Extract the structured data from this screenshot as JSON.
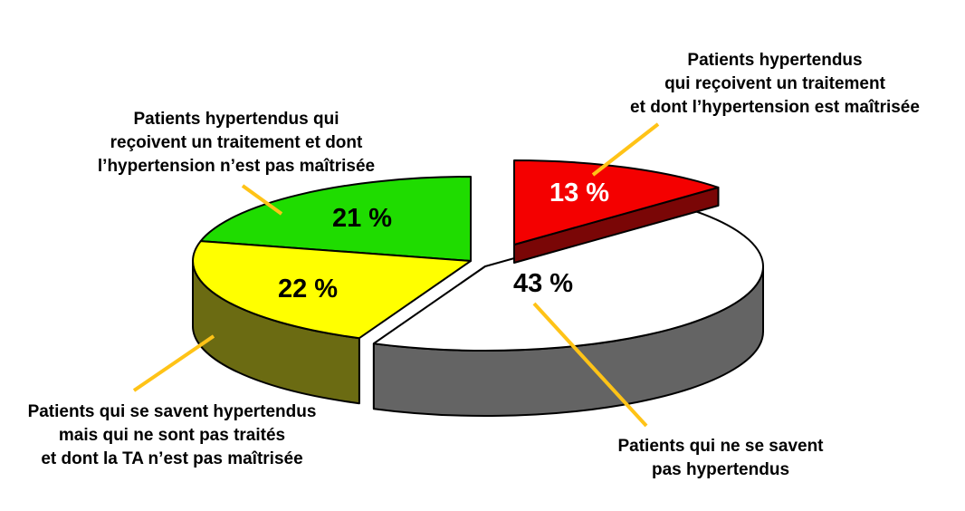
{
  "chart_data": {
    "type": "pie",
    "style": "3d-exploded",
    "unit": "%",
    "start_angle_deg": 90,
    "direction": "clockwise",
    "legend_position": "callouts",
    "slices": [
      {
        "name": "treated-controlled",
        "label": "Patients hypertendus qui reçoivent un traitement et dont l’hypertension est maîtrisée",
        "value": 13,
        "value_display": "13 %",
        "color": "#f40000",
        "side_color": "#7a0606",
        "text_color": "#ffffff",
        "exploded": true
      },
      {
        "name": "unaware",
        "label": "Patients qui ne se savent pas hypertendus",
        "value": 43,
        "value_display": "43 %",
        "color": "#ffffff",
        "side_color": "#646464",
        "text_color": "#000000",
        "exploded": false
      },
      {
        "name": "aware-untreated",
        "label": "Patients qui se savent hypertendus mais qui ne sont pas traités et dont la TA n’est pas maîtrisée",
        "value": 22,
        "value_display": "22 %",
        "color": "#ffff00",
        "side_color": "#6b6b12",
        "text_color": "#000000",
        "exploded": false
      },
      {
        "name": "treated-uncontrolled",
        "label": "Patients hypertendus qui reçoivent un traitement et dont l’hypertension n’est pas maîtrisée",
        "value": 21,
        "value_display": "21 %",
        "color": "#1fdc00",
        "side_color": "#127709",
        "text_color": "#000000",
        "exploded": false
      }
    ]
  },
  "callouts": {
    "top_right": {
      "lines": [
        "Patients hypertendus",
        "qui reçoivent un traitement",
        "et dont l’hypertension est maîtrisée"
      ]
    },
    "top_left": {
      "lines": [
        "Patients hypertendus qui",
        "reçoivent un traitement et dont",
        "l’hypertension n’est pas maîtrisée"
      ]
    },
    "bottom_left": {
      "lines": [
        "Patients qui se savent hypertendus",
        "mais qui ne sont pas traités",
        "et dont la TA n’est pas maîtrisée"
      ]
    },
    "bottom_right": {
      "lines": [
        "Patients qui ne se savent",
        "pas hypertendus"
      ]
    }
  },
  "colors": {
    "leader_line": "#ffc317",
    "outline": "#000000",
    "background": "#ffffff"
  }
}
